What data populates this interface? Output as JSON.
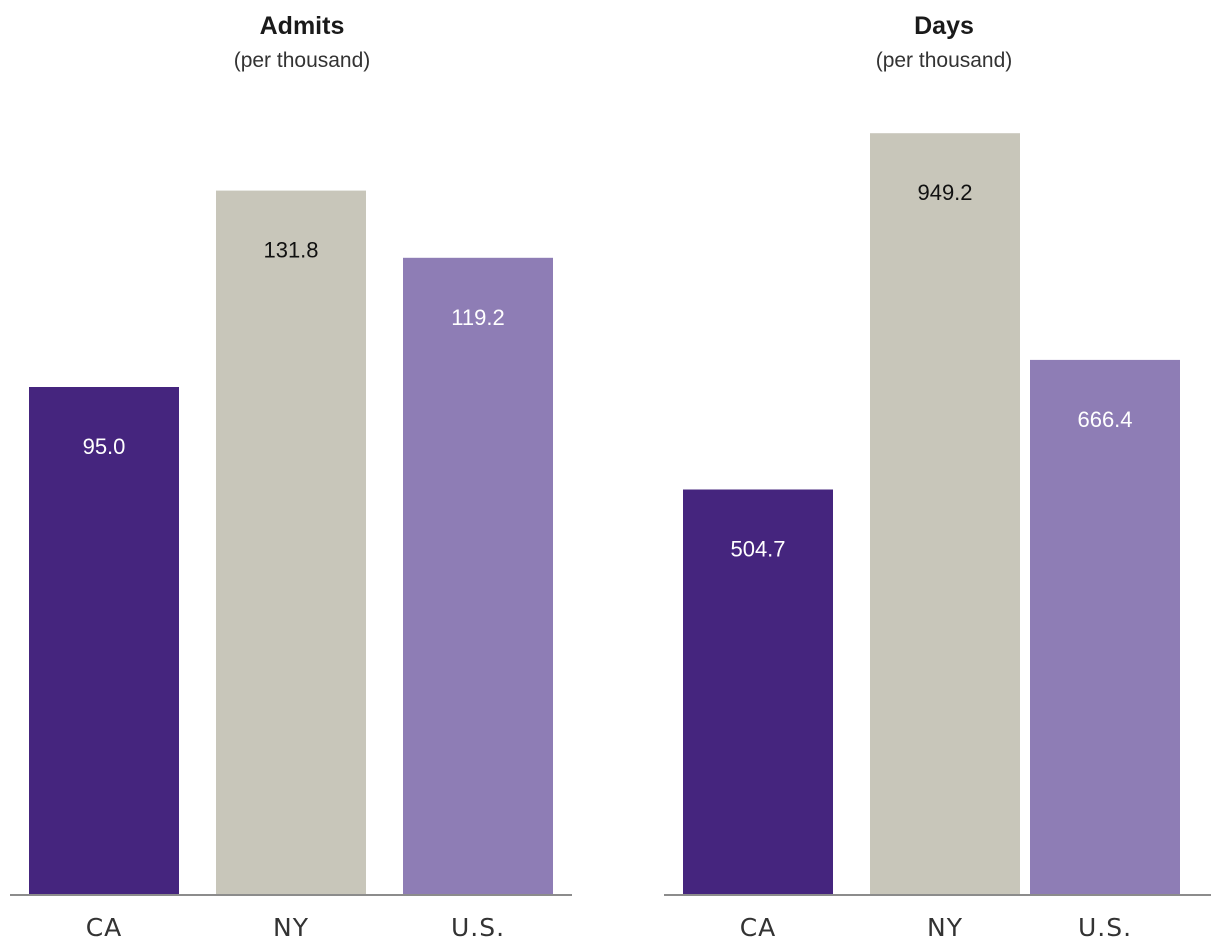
{
  "chart_data": [
    {
      "type": "bar",
      "title": "Admits",
      "subtitle": "(per thousand)",
      "categories": [
        "CA",
        "NY",
        "U.S."
      ],
      "values": [
        95.0,
        131.8,
        119.2
      ],
      "value_labels": [
        "95.0",
        "131.8",
        "119.2"
      ],
      "colors": [
        "#45257e",
        "#c8c6ba",
        "#8e7db5"
      ],
      "label_colors": [
        "#ffffff",
        "#111111",
        "#ffffff"
      ],
      "ylim": [
        0,
        140
      ],
      "grid": false,
      "legend": "none"
    },
    {
      "type": "bar",
      "title": "Days",
      "subtitle": "(per thousand)",
      "categories": [
        "CA",
        "NY",
        "U.S."
      ],
      "values": [
        504.7,
        949.2,
        666.4
      ],
      "value_labels": [
        "504.7",
        "949.2",
        "666.4"
      ],
      "colors": [
        "#45257e",
        "#c8c6ba",
        "#8e7db5"
      ],
      "label_colors": [
        "#ffffff",
        "#111111",
        "#ffffff"
      ],
      "ylim": [
        0,
        1000
      ],
      "grid": false,
      "legend": "none"
    }
  ]
}
